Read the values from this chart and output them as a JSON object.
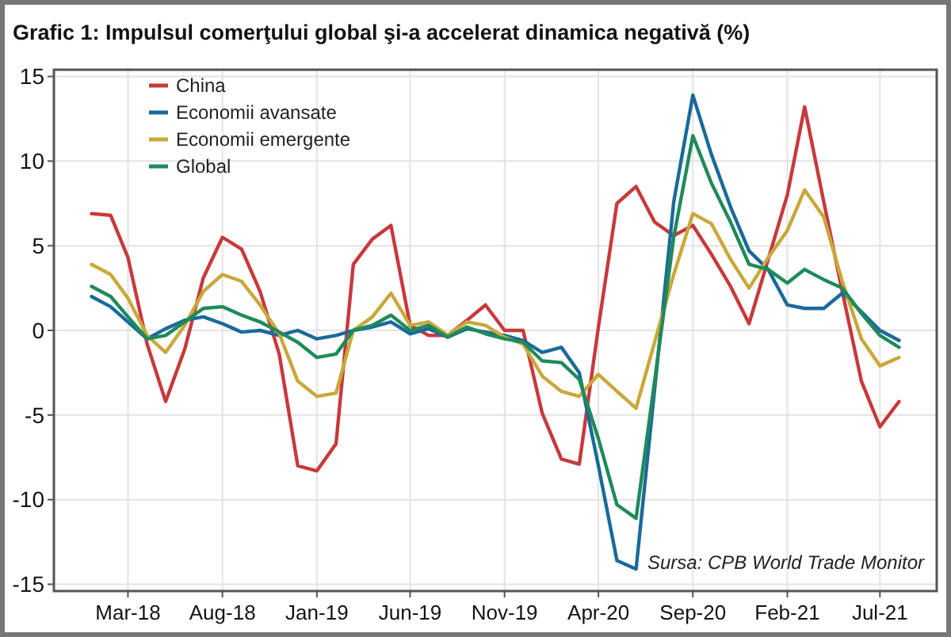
{
  "chart_data": {
    "type": "line",
    "title": "Grafic 1: Impulsul comerţului global şi-a accelerat dinamica negativă (%)",
    "x": [
      "2018-01",
      "2018-02",
      "2018-03",
      "2018-04",
      "2018-05",
      "2018-06",
      "2018-07",
      "2018-08",
      "2018-09",
      "2018-10",
      "2018-11",
      "2018-12",
      "2019-01",
      "2019-02",
      "2019-03",
      "2019-04",
      "2019-05",
      "2019-06",
      "2019-07",
      "2019-08",
      "2019-09",
      "2019-10",
      "2019-11",
      "2019-12",
      "2020-01",
      "2020-02",
      "2020-03",
      "2020-04",
      "2020-05",
      "2020-06",
      "2020-07",
      "2020-08",
      "2020-09",
      "2020-10",
      "2020-11",
      "2020-12",
      "2021-01",
      "2021-02",
      "2021-03",
      "2021-04",
      "2021-05",
      "2021-06",
      "2021-07",
      "2021-08"
    ],
    "series": [
      {
        "name": "China",
        "color": "#c8393b",
        "values": [
          6.9,
          6.8,
          4.3,
          -0.8,
          -4.2,
          -1.1,
          3.1,
          5.5,
          4.8,
          2.3,
          -1.4,
          -8.0,
          -8.3,
          -6.7,
          3.9,
          5.4,
          6.2,
          0.3,
          -0.3,
          -0.3,
          0.6,
          1.5,
          0.0,
          0.0,
          -4.9,
          -7.6,
          -7.9,
          0.2,
          7.5,
          8.5,
          6.4,
          5.6,
          6.2,
          4.5,
          2.6,
          0.4,
          4.2,
          8.0,
          13.2,
          7.6,
          2.3,
          -3.0,
          -5.7,
          -4.2
        ]
      },
      {
        "name": "Economii avansate",
        "color": "#1a6a9a",
        "values": [
          2.0,
          1.4,
          0.5,
          -0.5,
          0.1,
          0.6,
          0.8,
          0.4,
          -0.1,
          0.0,
          -0.3,
          0.0,
          -0.5,
          -0.3,
          0.0,
          0.2,
          0.5,
          -0.2,
          0.1,
          -0.4,
          0.1,
          -0.1,
          -0.3,
          -0.6,
          -1.3,
          -1.0,
          -2.5,
          -8.0,
          -13.6,
          -14.1,
          -3.5,
          7.6,
          13.9,
          10.4,
          7.3,
          4.7,
          3.6,
          1.5,
          1.3,
          1.3,
          2.2,
          1.1,
          0.0,
          -0.6
        ]
      },
      {
        "name": "Economii emergente",
        "color": "#c9a83a",
        "values": [
          3.9,
          3.3,
          1.9,
          -0.3,
          -1.3,
          0.3,
          2.3,
          3.3,
          2.9,
          1.5,
          -0.2,
          -3.0,
          -3.9,
          -3.7,
          0.0,
          0.8,
          2.2,
          0.3,
          0.5,
          -0.3,
          0.5,
          0.3,
          -0.4,
          -0.8,
          -2.7,
          -3.6,
          -3.9,
          -2.6,
          -3.6,
          -4.6,
          -0.7,
          3.3,
          6.9,
          6.3,
          4.2,
          2.5,
          4.3,
          5.9,
          8.3,
          6.7,
          2.9,
          -0.5,
          -2.1,
          -1.6
        ]
      },
      {
        "name": "Global",
        "color": "#1f8a5a",
        "values": [
          2.6,
          2.0,
          0.8,
          -0.5,
          -0.3,
          0.5,
          1.3,
          1.4,
          0.9,
          0.5,
          -0.1,
          -0.7,
          -1.6,
          -1.4,
          0.0,
          0.3,
          0.9,
          0.0,
          0.3,
          -0.4,
          0.2,
          -0.2,
          -0.5,
          -0.7,
          -1.8,
          -1.9,
          -2.9,
          -6.4,
          -10.3,
          -11.1,
          -3.0,
          5.5,
          11.5,
          8.7,
          6.4,
          3.9,
          3.6,
          2.8,
          3.6,
          3.0,
          2.5,
          1.0,
          -0.3,
          -1.0
        ]
      }
    ],
    "xlim": [
      "2017-11",
      "2021-10"
    ],
    "xticks": [
      {
        "value": "2018-03",
        "label": "Mar-18"
      },
      {
        "value": "2018-08",
        "label": "Aug-18"
      },
      {
        "value": "2019-01",
        "label": "Jan-19"
      },
      {
        "value": "2019-06",
        "label": "Jun-19"
      },
      {
        "value": "2019-11",
        "label": "Nov-19"
      },
      {
        "value": "2020-04",
        "label": "Apr-20"
      },
      {
        "value": "2020-09",
        "label": "Sep-20"
      },
      {
        "value": "2021-02",
        "label": "Feb-21"
      },
      {
        "value": "2021-07",
        "label": "Jul-21"
      }
    ],
    "ylim": [
      -15.4,
      15.4
    ],
    "yticks": [
      -15,
      -10,
      -5,
      0,
      5,
      10,
      15
    ],
    "grid": true,
    "legend": "top left",
    "marker": "none",
    "line_style": "solid",
    "annotations": [
      "Sursa: CPB World Trade Monitor"
    ]
  }
}
